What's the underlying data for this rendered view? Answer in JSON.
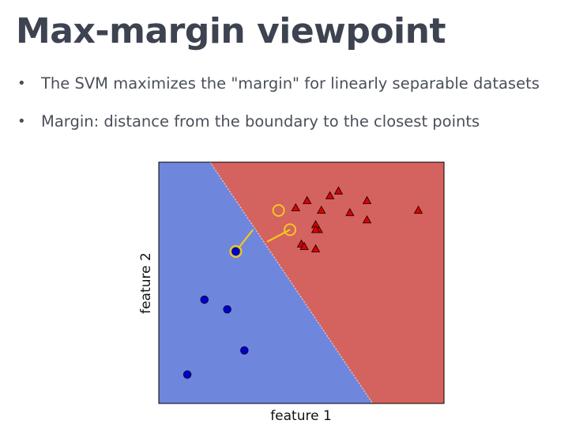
{
  "slide": {
    "title": "Max-margin viewpoint",
    "bullets": [
      "The SVM maximizes the \"margin\" for linearly separable datasets",
      "Margin: distance from the boundary to the closest points"
    ]
  },
  "chart_data": {
    "type": "scatter",
    "xlabel": "feature 1",
    "ylabel": "feature 2",
    "xlim": [
      0,
      10
    ],
    "ylim": [
      0,
      10
    ],
    "ticks_visible": false,
    "grid": false,
    "legend": "none",
    "regions": {
      "class_0_color": "#6f86dd",
      "class_1_color": "#d4625f",
      "boundary": [
        [
          1.8,
          10
        ],
        [
          7.5,
          0
        ]
      ]
    },
    "series": [
      {
        "marker": "circle",
        "color": "#0000cc",
        "x": [
          2.7,
          1.6,
          2.4,
          3.0,
          1.0
        ],
        "y": [
          6.3,
          4.3,
          3.9,
          2.2,
          1.2
        ]
      },
      {
        "marker": "triangle",
        "color": "#dd0000",
        "x": [
          4.8,
          5.2,
          5.7,
          6.0,
          6.3,
          5.6,
          6.7,
          7.3,
          7.3,
          9.1,
          5.5,
          5.5,
          5.0,
          5.1,
          5.5
        ],
        "y": [
          8.1,
          8.4,
          8.0,
          8.6,
          8.8,
          7.2,
          7.9,
          8.4,
          7.6,
          8.0,
          7.4,
          7.2,
          6.6,
          6.5,
          6.4
        ]
      }
    ],
    "support_vectors": [
      {
        "x": 2.7,
        "y": 6.3
      },
      {
        "x": 4.2,
        "y": 8.0
      },
      {
        "x": 4.6,
        "y": 7.2
      }
    ],
    "margin_lines": [
      {
        "from": [
          2.7,
          6.3
        ],
        "to": [
          3.3,
          7.2
        ]
      },
      {
        "from": [
          3.8,
          6.7
        ],
        "to": [
          4.6,
          7.2
        ]
      }
    ],
    "highlight_color": "#f2c81e"
  }
}
